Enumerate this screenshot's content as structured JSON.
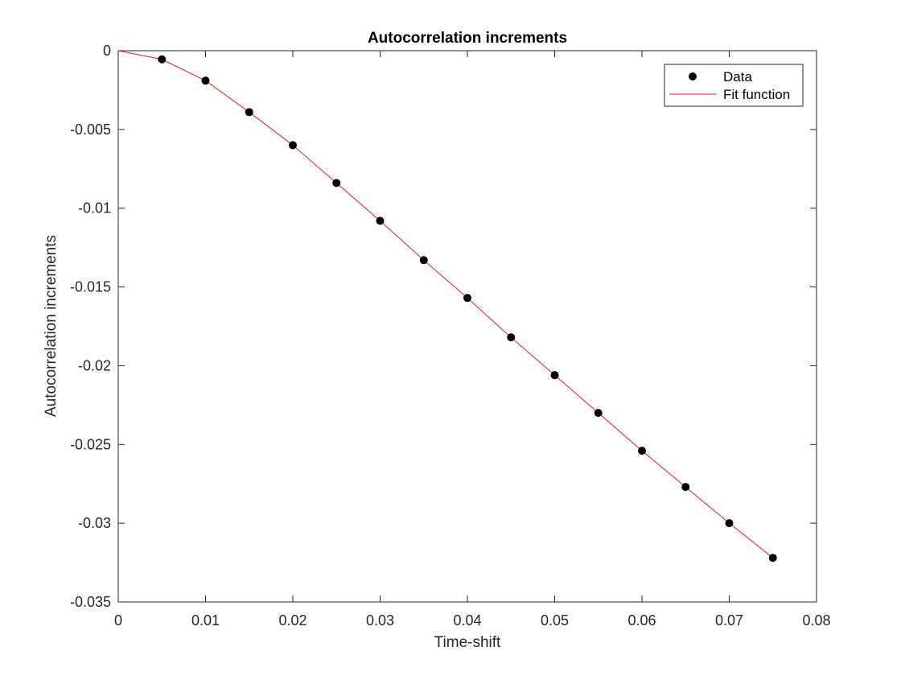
{
  "chart_data": {
    "type": "scatter",
    "title": "Autocorrelation increments",
    "xlabel": "Time-shift",
    "ylabel": "Autocorrelation increments",
    "xlim": [
      0,
      0.08
    ],
    "ylim": [
      -0.035,
      0
    ],
    "xticks": [
      0,
      0.01,
      0.02,
      0.03,
      0.04,
      0.05,
      0.06,
      0.07,
      0.08
    ],
    "yticks": [
      0,
      -0.005,
      -0.01,
      -0.015,
      -0.02,
      -0.025,
      -0.03,
      -0.035
    ],
    "xtick_labels": [
      "0",
      "0.01",
      "0.02",
      "0.03",
      "0.04",
      "0.05",
      "0.06",
      "0.07",
      "0.08"
    ],
    "ytick_labels": [
      "0",
      "-0.005",
      "-0.01",
      "-0.015",
      "-0.02",
      "-0.025",
      "-0.03",
      "-0.035"
    ],
    "grid": false,
    "legend_position": "top-right",
    "series": [
      {
        "name": "Data",
        "kind": "markers",
        "color": "#000000",
        "x": [
          0.005,
          0.01,
          0.015,
          0.02,
          0.025,
          0.03,
          0.035,
          0.04,
          0.045,
          0.05,
          0.055,
          0.06,
          0.065,
          0.07,
          0.075
        ],
        "y": [
          -0.00055,
          -0.0019,
          -0.0039,
          -0.006,
          -0.0084,
          -0.0108,
          -0.0133,
          -0.0157,
          -0.0182,
          -0.0206,
          -0.023,
          -0.0254,
          -0.0277,
          -0.03,
          -0.0322
        ]
      },
      {
        "name": "Fit function",
        "kind": "line",
        "color": "#e31a1c",
        "x": [
          0,
          0.005,
          0.01,
          0.015,
          0.02,
          0.025,
          0.03,
          0.035,
          0.04,
          0.045,
          0.05,
          0.055,
          0.06,
          0.065,
          0.07,
          0.075
        ],
        "y": [
          0,
          -0.00055,
          -0.0019,
          -0.0039,
          -0.006,
          -0.0084,
          -0.0108,
          -0.0133,
          -0.0157,
          -0.0182,
          -0.0206,
          -0.023,
          -0.0254,
          -0.0277,
          -0.03,
          -0.0322
        ]
      }
    ]
  }
}
